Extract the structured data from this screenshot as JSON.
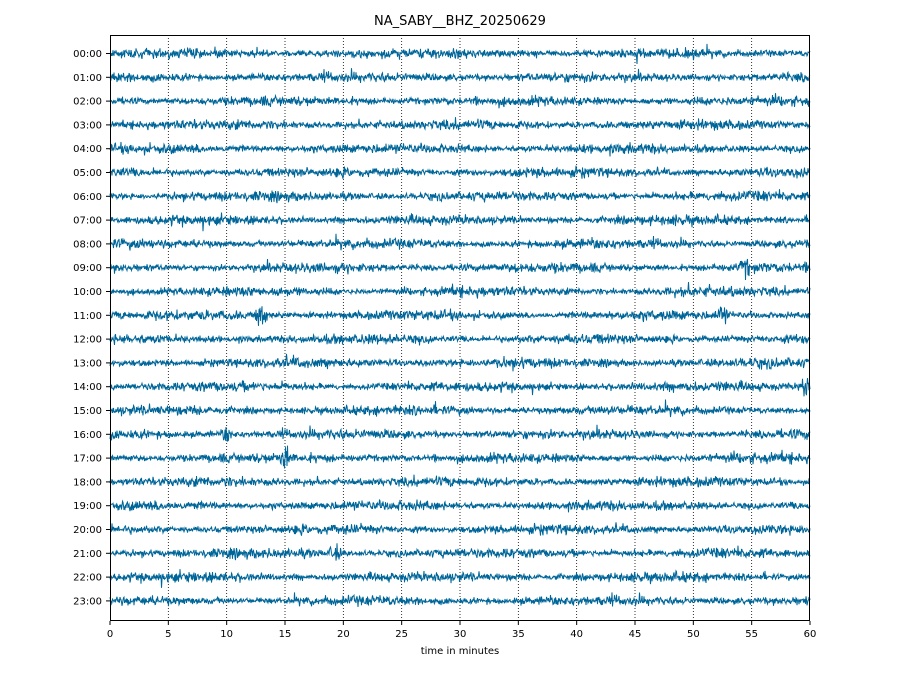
{
  "chart_data": {
    "type": "line",
    "title": "NA_SABY__BHZ_20250629",
    "xlabel": "time in minutes",
    "ylabel": "",
    "xlim": [
      0,
      60
    ],
    "x_ticks": [
      "0",
      "5",
      "10",
      "15",
      "20",
      "25",
      "30",
      "35",
      "40",
      "45",
      "50",
      "55",
      "60"
    ],
    "y_tick_labels": [
      "00:00",
      "01:00",
      "02:00",
      "03:00",
      "04:00",
      "05:00",
      "06:00",
      "07:00",
      "08:00",
      "09:00",
      "10:00",
      "11:00",
      "12:00",
      "13:00",
      "14:00",
      "15:00",
      "16:00",
      "17:00",
      "18:00",
      "19:00",
      "20:00",
      "21:00",
      "22:00",
      "23:00"
    ],
    "grid": "vertical dotted lines at each 5-minute tick",
    "trace_color": "#006699",
    "events": [
      {
        "hour": "11:00",
        "minute": 13,
        "amplitude": 2.2
      },
      {
        "hour": "11:00",
        "minute": 52.5,
        "amplitude": 1.3
      },
      {
        "hour": "14:00",
        "minute": 59.5,
        "amplitude": 1.8
      },
      {
        "hour": "17:00",
        "minute": 15,
        "amplitude": 1.9
      },
      {
        "hour": "9:00",
        "minute": 54.5,
        "amplitude": 1.1
      },
      {
        "hour": "21:00",
        "minute": 19.3,
        "amplitude": 1.2
      },
      {
        "hour": "16:00",
        "minute": 10,
        "amplitude": 1.0
      }
    ]
  }
}
